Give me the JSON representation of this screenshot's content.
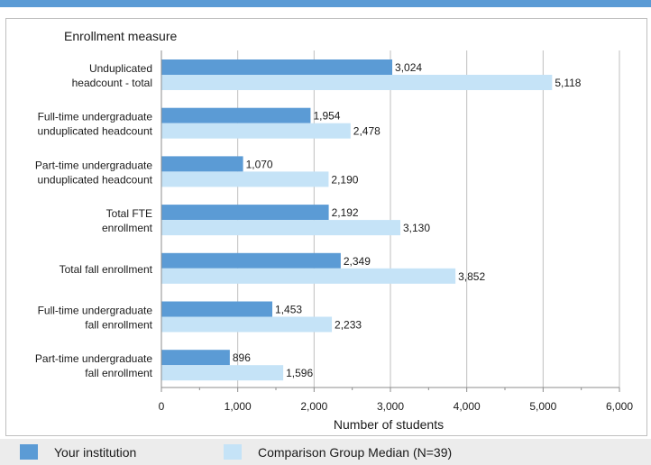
{
  "chart_data": {
    "type": "bar",
    "orientation": "horizontal",
    "categories_title": "Enrollment measure",
    "xlabel": "Number of students",
    "xlim": [
      0,
      6000
    ],
    "xticks": [
      0,
      1000,
      2000,
      3000,
      4000,
      5000,
      6000
    ],
    "xtick_labels": [
      "0",
      "1,000",
      "2,000",
      "3,000",
      "4,000",
      "5,000",
      "6,000"
    ],
    "grid": true,
    "legend_position": "bottom",
    "categories": [
      [
        "Unduplicated",
        "headcount - total"
      ],
      [
        "Full-time undergraduate",
        "unduplicated headcount"
      ],
      [
        "Part-time undergraduate",
        "unduplicated headcount"
      ],
      [
        "Total FTE",
        "enrollment"
      ],
      [
        "Total fall enrollment"
      ],
      [
        "Full-time undergraduate",
        "fall enrollment"
      ],
      [
        "Part-time undergraduate",
        "fall enrollment"
      ]
    ],
    "series": [
      {
        "name": "Your institution",
        "color": "#5b9bd5",
        "values": [
          3024,
          1954,
          1070,
          2192,
          2349,
          1453,
          896
        ],
        "labels": [
          "3,024",
          "1,954",
          "1,070",
          "2,192",
          "2,349",
          "1,453",
          "896"
        ]
      },
      {
        "name": "Comparison Group Median (N=39)",
        "color": "#c5e3f7",
        "values": [
          5118,
          2478,
          2190,
          3130,
          3852,
          2233,
          1596
        ],
        "labels": [
          "5,118",
          "2,478",
          "2,190",
          "3,130",
          "3,852",
          "2,233",
          "1,596"
        ]
      }
    ]
  }
}
